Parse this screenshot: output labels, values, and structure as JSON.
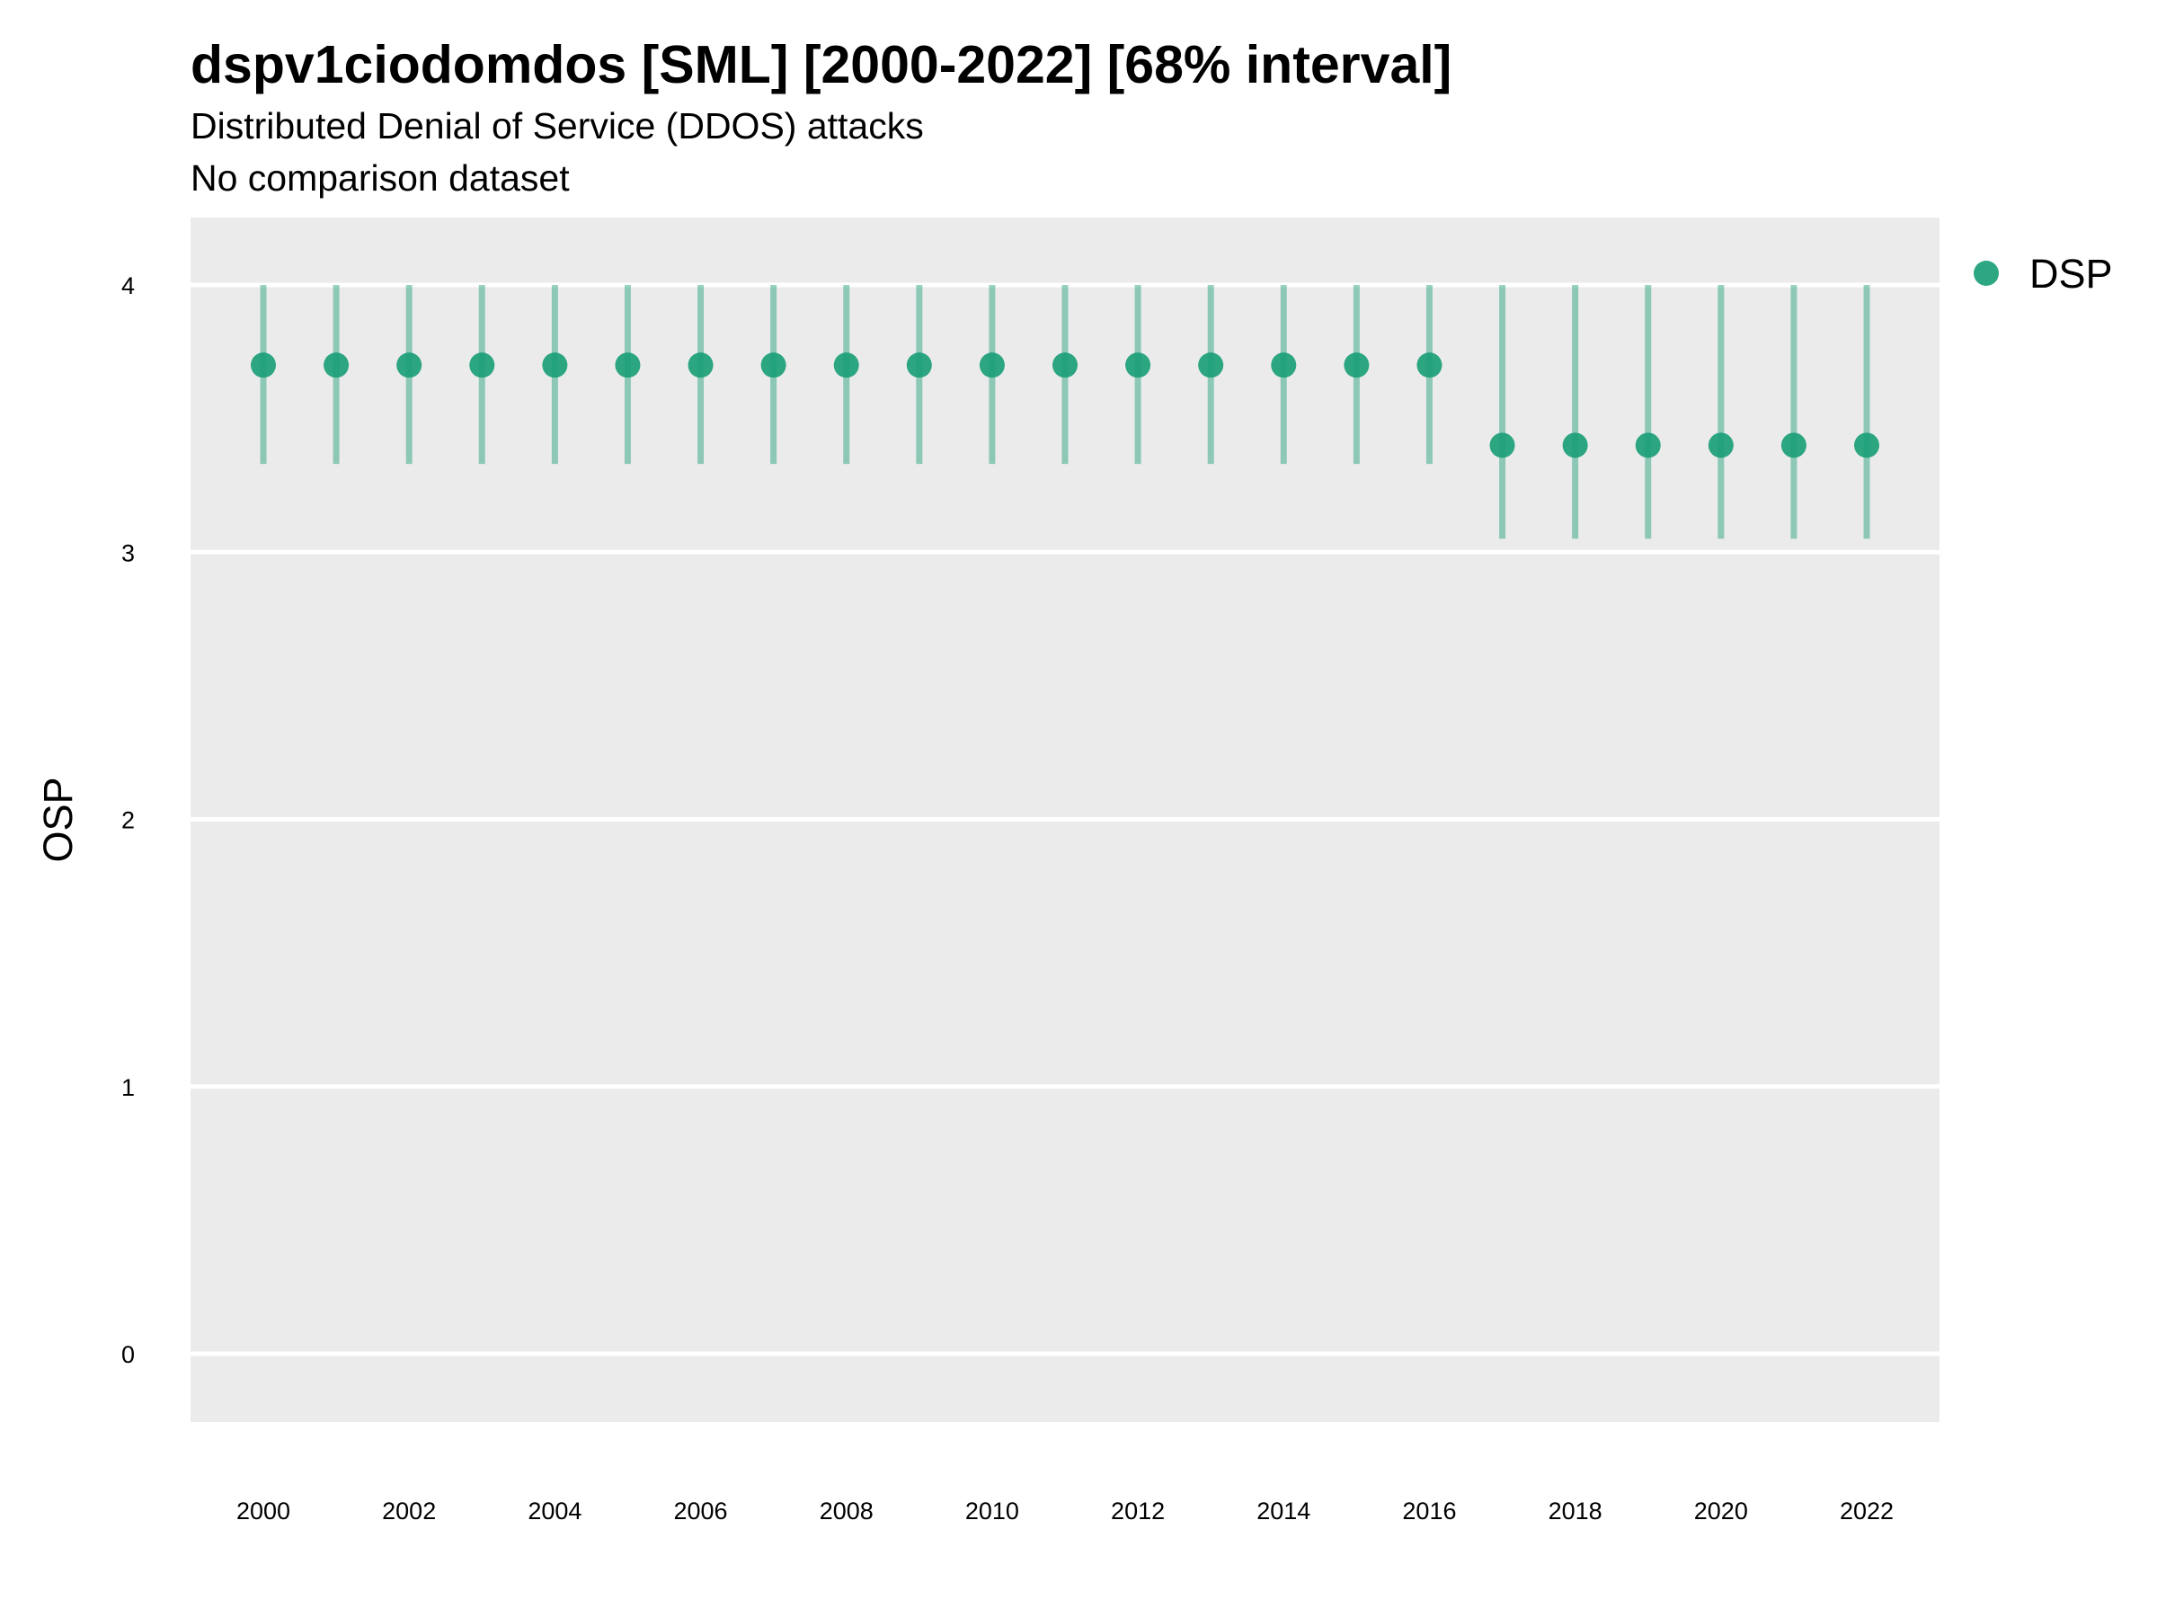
{
  "chart_data": {
    "type": "scatter",
    "title": "dspv1ciodomdos [SML] [2000-2022] [68% interval]",
    "subtitle": "Distributed Denial of Service (DDOS) attacks",
    "caption": "No comparison dataset",
    "xlabel": "",
    "ylabel": "OSP",
    "ylim": [
      -0.25,
      4.25
    ],
    "y_ticks": [
      0,
      1,
      2,
      3,
      4
    ],
    "x_ticks": [
      2000,
      2002,
      2004,
      2006,
      2008,
      2010,
      2012,
      2014,
      2016,
      2018,
      2020,
      2022
    ],
    "grid": "horizontal major lines only",
    "legend_position": "right",
    "series": [
      {
        "name": "DSP",
        "color": "#1b9e77",
        "points": [
          {
            "x": 2000,
            "y": 3.7,
            "lower": 3.33,
            "upper": 4.0
          },
          {
            "x": 2001,
            "y": 3.7,
            "lower": 3.33,
            "upper": 4.0
          },
          {
            "x": 2002,
            "y": 3.7,
            "lower": 3.33,
            "upper": 4.0
          },
          {
            "x": 2003,
            "y": 3.7,
            "lower": 3.33,
            "upper": 4.0
          },
          {
            "x": 2004,
            "y": 3.7,
            "lower": 3.33,
            "upper": 4.0
          },
          {
            "x": 2005,
            "y": 3.7,
            "lower": 3.33,
            "upper": 4.0
          },
          {
            "x": 2006,
            "y": 3.7,
            "lower": 3.33,
            "upper": 4.0
          },
          {
            "x": 2007,
            "y": 3.7,
            "lower": 3.33,
            "upper": 4.0
          },
          {
            "x": 2008,
            "y": 3.7,
            "lower": 3.33,
            "upper": 4.0
          },
          {
            "x": 2009,
            "y": 3.7,
            "lower": 3.33,
            "upper": 4.0
          },
          {
            "x": 2010,
            "y": 3.7,
            "lower": 3.33,
            "upper": 4.0
          },
          {
            "x": 2011,
            "y": 3.7,
            "lower": 3.33,
            "upper": 4.0
          },
          {
            "x": 2012,
            "y": 3.7,
            "lower": 3.33,
            "upper": 4.0
          },
          {
            "x": 2013,
            "y": 3.7,
            "lower": 3.33,
            "upper": 4.0
          },
          {
            "x": 2014,
            "y": 3.7,
            "lower": 3.33,
            "upper": 4.0
          },
          {
            "x": 2015,
            "y": 3.7,
            "lower": 3.33,
            "upper": 4.0
          },
          {
            "x": 2016,
            "y": 3.7,
            "lower": 3.33,
            "upper": 4.0
          },
          {
            "x": 2017,
            "y": 3.4,
            "lower": 3.05,
            "upper": 4.0
          },
          {
            "x": 2018,
            "y": 3.4,
            "lower": 3.05,
            "upper": 4.0
          },
          {
            "x": 2019,
            "y": 3.4,
            "lower": 3.05,
            "upper": 4.0
          },
          {
            "x": 2020,
            "y": 3.4,
            "lower": 3.05,
            "upper": 4.0
          },
          {
            "x": 2021,
            "y": 3.4,
            "lower": 3.05,
            "upper": 4.0
          },
          {
            "x": 2022,
            "y": 3.4,
            "lower": 3.05,
            "upper": 4.0
          }
        ]
      }
    ]
  },
  "colors": {
    "panel_background": "#ebebeb",
    "grid_line": "#ffffff",
    "interval_color": "#1b9e77",
    "point_color": "#1b9e77"
  }
}
